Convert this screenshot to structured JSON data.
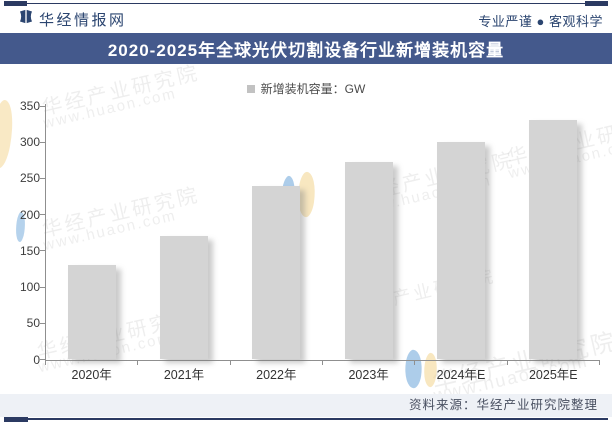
{
  "page": {
    "brand": "华经情报网",
    "slogan": "专业严谨 ● 客观科学",
    "title": "2020-2025年全球光伏切割设备行业新增装机容量",
    "source": "资料来源：华经产业研究院整理"
  },
  "legend": {
    "label": "新增装机容量：GW"
  },
  "watermark": {
    "text_primary": "华经产业研究院",
    "text_secondary": "www.huaon.com"
  },
  "colors": {
    "accent_navy": "#2b3a62",
    "header_text": "#2b4570",
    "title_band_bg": "#44598c",
    "title_text": "#ffffff",
    "bar_fill": "#d4d4d4",
    "axis": "#8f8f8f",
    "footer_band_bg": "#eef1f6",
    "footer_text": "#495061",
    "watermark_blue": "#5b9bd5",
    "watermark_yellow": "#f3d48c"
  },
  "chart_data": {
    "type": "bar",
    "title": "2020-2025年全球光伏切割设备行业新增装机容量",
    "legend": [
      "新增装机容量：GW"
    ],
    "categories": [
      "2020年",
      "2021年",
      "2022年",
      "2023年",
      "2024年E",
      "2025年E"
    ],
    "values": [
      130,
      170,
      240,
      273,
      300,
      330
    ],
    "unit": "GW",
    "xlabel": "",
    "ylabel": "",
    "ylim": [
      0,
      350
    ],
    "yticks": [
      0,
      50,
      100,
      150,
      200,
      250,
      300,
      350
    ],
    "grid": false,
    "legend_position": "top-center",
    "bar_color": "#d4d4d4"
  }
}
